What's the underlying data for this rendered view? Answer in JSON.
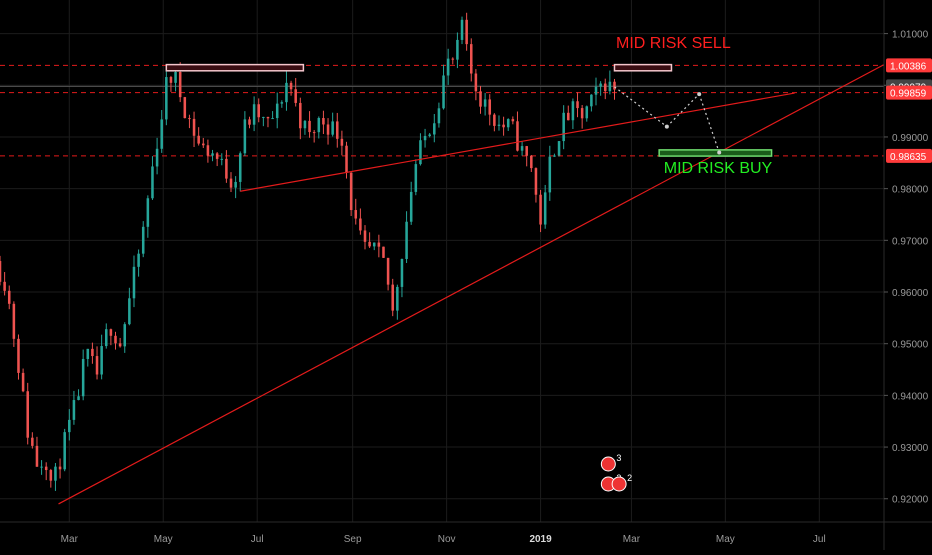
{
  "chart_data": {
    "type": "candlestick",
    "title": "",
    "xlabel": "",
    "ylabel": "",
    "ylim": [
      0.9155,
      1.0165
    ],
    "yaxis_side": "right",
    "grid": true,
    "colors": {
      "background": "#000000",
      "up": "#26a69a",
      "down": "#ef5350",
      "grid": "#1c1c1c",
      "axis_text": "#9a9a9a",
      "trendline": "#e31b1b",
      "sell_label": "#ff1f1f",
      "buy_label": "#22ee22",
      "price_tag_red": "#ff3b3b",
      "price_tag_grey": "#444444",
      "sell_box": "#f4c6cc",
      "buy_box": "#1a5c1a"
    },
    "y_ticks": [
      "0.92000",
      "0.93000",
      "0.94000",
      "0.95000",
      "0.96000",
      "0.97000",
      "0.98000",
      "0.99000",
      "1.00000",
      "1.01000"
    ],
    "y_tick_values": [
      0.92,
      0.93,
      0.94,
      0.95,
      0.96,
      0.97,
      0.98,
      0.99,
      1.0,
      1.01
    ],
    "x_ticks": [
      "Mar",
      "May",
      "Jul",
      "Sep",
      "Nov",
      "2019",
      "Mar",
      "May",
      "Jul"
    ],
    "x_tick_dates": [
      "2018-03-01",
      "2018-05-01",
      "2018-07-01",
      "2018-09-01",
      "2018-11-01",
      "2019-01-01",
      "2019-03-01",
      "2019-05-01",
      "2019-07-01"
    ],
    "x_range": [
      "2018-01-15",
      "2019-08-12"
    ],
    "price_path": [
      [
        "2018-01-15",
        0.966
      ],
      [
        "2018-01-22",
        0.9615
      ],
      [
        "2018-01-29",
        0.948
      ],
      [
        "2018-02-05",
        0.933
      ],
      [
        "2018-02-12",
        0.926
      ],
      [
        "2018-02-16",
        0.929
      ],
      [
        "2018-02-21",
        0.922
      ],
      [
        "2018-02-28",
        0.93
      ],
      [
        "2018-03-08",
        0.938
      ],
      [
        "2018-03-15",
        0.948
      ],
      [
        "2018-03-22",
        0.944
      ],
      [
        "2018-03-30",
        0.954
      ],
      [
        "2018-04-06",
        0.95
      ],
      [
        "2018-04-13",
        0.96
      ],
      [
        "2018-04-20",
        0.97
      ],
      [
        "2018-04-27",
        0.984
      ],
      [
        "2018-05-04",
        0.996
      ],
      [
        "2018-05-07",
        1.002
      ],
      [
        "2018-05-12",
        1.001
      ],
      [
        "2018-05-20",
        0.994
      ],
      [
        "2018-05-28",
        0.988
      ],
      [
        "2018-06-05",
        0.987
      ],
      [
        "2018-06-12",
        0.984
      ],
      [
        "2018-06-19",
        0.981
      ],
      [
        "2018-06-26",
        0.992
      ],
      [
        "2018-07-03",
        0.995
      ],
      [
        "2018-07-10",
        0.992
      ],
      [
        "2018-07-17",
        0.995
      ],
      [
        "2018-07-24",
        1.0015
      ],
      [
        "2018-07-31",
        0.994
      ],
      [
        "2018-08-07",
        0.99
      ],
      [
        "2018-08-14",
        0.9935
      ],
      [
        "2018-08-21",
        0.992
      ],
      [
        "2018-08-28",
        0.99
      ],
      [
        "2018-09-04",
        0.975
      ],
      [
        "2018-09-11",
        0.968
      ],
      [
        "2018-09-18",
        0.968
      ],
      [
        "2018-09-25",
        0.965
      ],
      [
        "2018-09-30",
        0.956
      ],
      [
        "2018-10-07",
        0.97
      ],
      [
        "2018-10-14",
        0.984
      ],
      [
        "2018-10-21",
        0.99
      ],
      [
        "2018-10-28",
        0.995
      ],
      [
        "2018-11-04",
        1.004
      ],
      [
        "2018-11-10",
        1.005
      ],
      [
        "2018-11-14",
        1.012
      ],
      [
        "2018-11-18",
        1.004
      ],
      [
        "2018-11-25",
        0.998
      ],
      [
        "2018-12-02",
        0.995
      ],
      [
        "2018-12-09",
        0.992
      ],
      [
        "2018-12-16",
        0.992
      ],
      [
        "2018-12-23",
        0.987
      ],
      [
        "2018-12-30",
        0.984
      ],
      [
        "2019-01-02",
        0.976
      ],
      [
        "2019-01-05",
        0.973
      ],
      [
        "2019-01-10",
        0.985
      ],
      [
        "2019-01-17",
        0.992
      ],
      [
        "2019-01-24",
        0.995
      ],
      [
        "2019-01-31",
        0.994
      ],
      [
        "2019-02-07",
        0.997
      ],
      [
        "2019-02-14",
        1.001
      ],
      [
        "2019-02-18",
        0.9997
      ]
    ],
    "bar_days": 3,
    "horizontal_levels": [
      {
        "value": 1.00386,
        "label": "1.00386",
        "style": "dashed",
        "tag": "red"
      },
      {
        "value": 0.99979,
        "label": "0.99979",
        "style": "solid",
        "tag": "grey"
      },
      {
        "value": 0.99859,
        "label": "0.99859",
        "style": "dashed",
        "tag": "red"
      },
      {
        "value": 0.98635,
        "label": "0.98635",
        "style": "dashed",
        "tag": "red"
      }
    ],
    "trendlines": [
      {
        "from": [
          "2018-02-22",
          0.919
        ],
        "to": [
          "2019-08-12",
          1.004
        ]
      },
      {
        "from": [
          "2018-06-20",
          0.9795
        ],
        "to": [
          "2019-06-15",
          0.9985
        ]
      }
    ],
    "boxes": [
      {
        "from": [
          "2018-05-03",
          1.004
        ],
        "to": [
          "2018-07-31",
          1.0028
        ],
        "kind": "sell"
      },
      {
        "from": [
          "2019-02-18",
          1.004
        ],
        "to": [
          "2019-03-27",
          1.0028
        ],
        "kind": "sell"
      },
      {
        "from": [
          "2019-03-19",
          0.9875
        ],
        "to": [
          "2019-05-31",
          0.9863
        ],
        "kind": "buy"
      }
    ],
    "projection_path": [
      [
        "2019-02-18",
        0.9997
      ],
      [
        "2019-03-24",
        0.992
      ],
      [
        "2019-04-14",
        0.9983
      ],
      [
        "2019-04-27",
        0.987
      ]
    ],
    "annotations": [
      {
        "text": "MID RISK SELL",
        "at": [
          "2019-02-19",
          1.0072
        ],
        "color_key": "sell_label"
      },
      {
        "text": "MID RISK BUY",
        "at": [
          "2019-03-22",
          0.983
        ],
        "color_key": "buy_label"
      }
    ],
    "event_badges": [
      {
        "text": "3",
        "at": "2019-02-14",
        "row": 1
      },
      {
        "text": "2",
        "at": "2019-02-14",
        "row": 2
      },
      {
        "text": "2",
        "at": "2019-02-21",
        "row": 2
      }
    ]
  }
}
